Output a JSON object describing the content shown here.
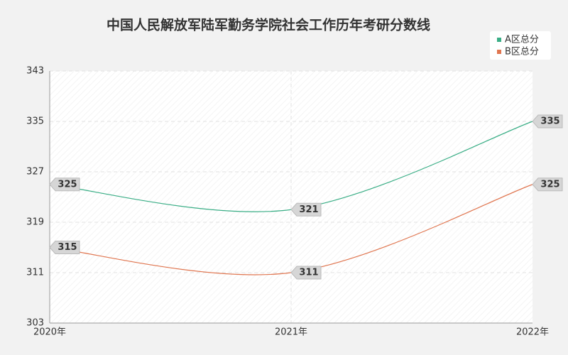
{
  "chart_data": {
    "type": "line",
    "title": "中国人民解放军陆军勤务学院社会工作历年考研分数线",
    "categories": [
      "2020年",
      "2021年",
      "2022年"
    ],
    "series": [
      {
        "name": "A区总分",
        "color": "#3aae86",
        "values": [
          325,
          321,
          335
        ]
      },
      {
        "name": "B区总分",
        "color": "#e07650",
        "values": [
          315,
          311,
          325
        ]
      }
    ],
    "ylim": [
      303,
      343
    ],
    "yticks": [
      303,
      311,
      319,
      327,
      335,
      343
    ],
    "grid": true,
    "legend": "top-right"
  }
}
